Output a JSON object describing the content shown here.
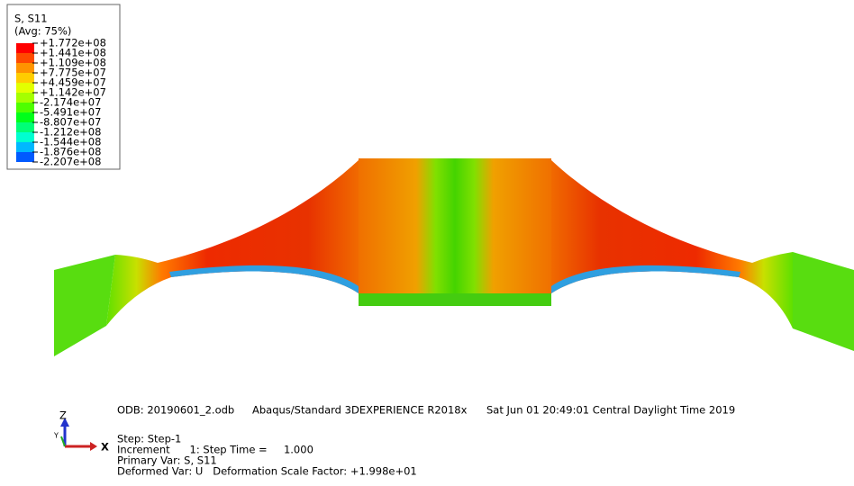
{
  "legend": {
    "title": "S, S11",
    "subtitle": "(Avg: 75%)",
    "labels": [
      "+1.772e+08",
      "+1.441e+08",
      "+1.109e+08",
      "+7.775e+07",
      "+4.459e+07",
      "+1.142e+07",
      "-2.174e+07",
      "-5.491e+07",
      "-8.807e+07",
      "-1.212e+08",
      "-1.544e+08",
      "-1.876e+08",
      "-2.207e+08"
    ],
    "colors": [
      "#ff0000",
      "#ff4a00",
      "#ff9400",
      "#ffcd00",
      "#e3ff00",
      "#a5ff00",
      "#4eff00",
      "#00ff1a",
      "#00ff76",
      "#00ffd0",
      "#00b8ff",
      "#005aff"
    ]
  },
  "triad": {
    "z": "Z",
    "y": "Y",
    "x": "X"
  },
  "info": {
    "odb": "ODB: 20190601_2.odb",
    "solver": "Abaqus/Standard 3DEXPERIENCE R2018x",
    "date": "Sat Jun 01 20:49:01 Central Daylight Time 2019",
    "step": "Step: Step-1",
    "increment": "Increment      1: Step Time =     1.000",
    "primary": "Primary Var: S, S11",
    "deformed": "Deformed Var: U   Deformation Scale Factor: +1.998e+01"
  }
}
